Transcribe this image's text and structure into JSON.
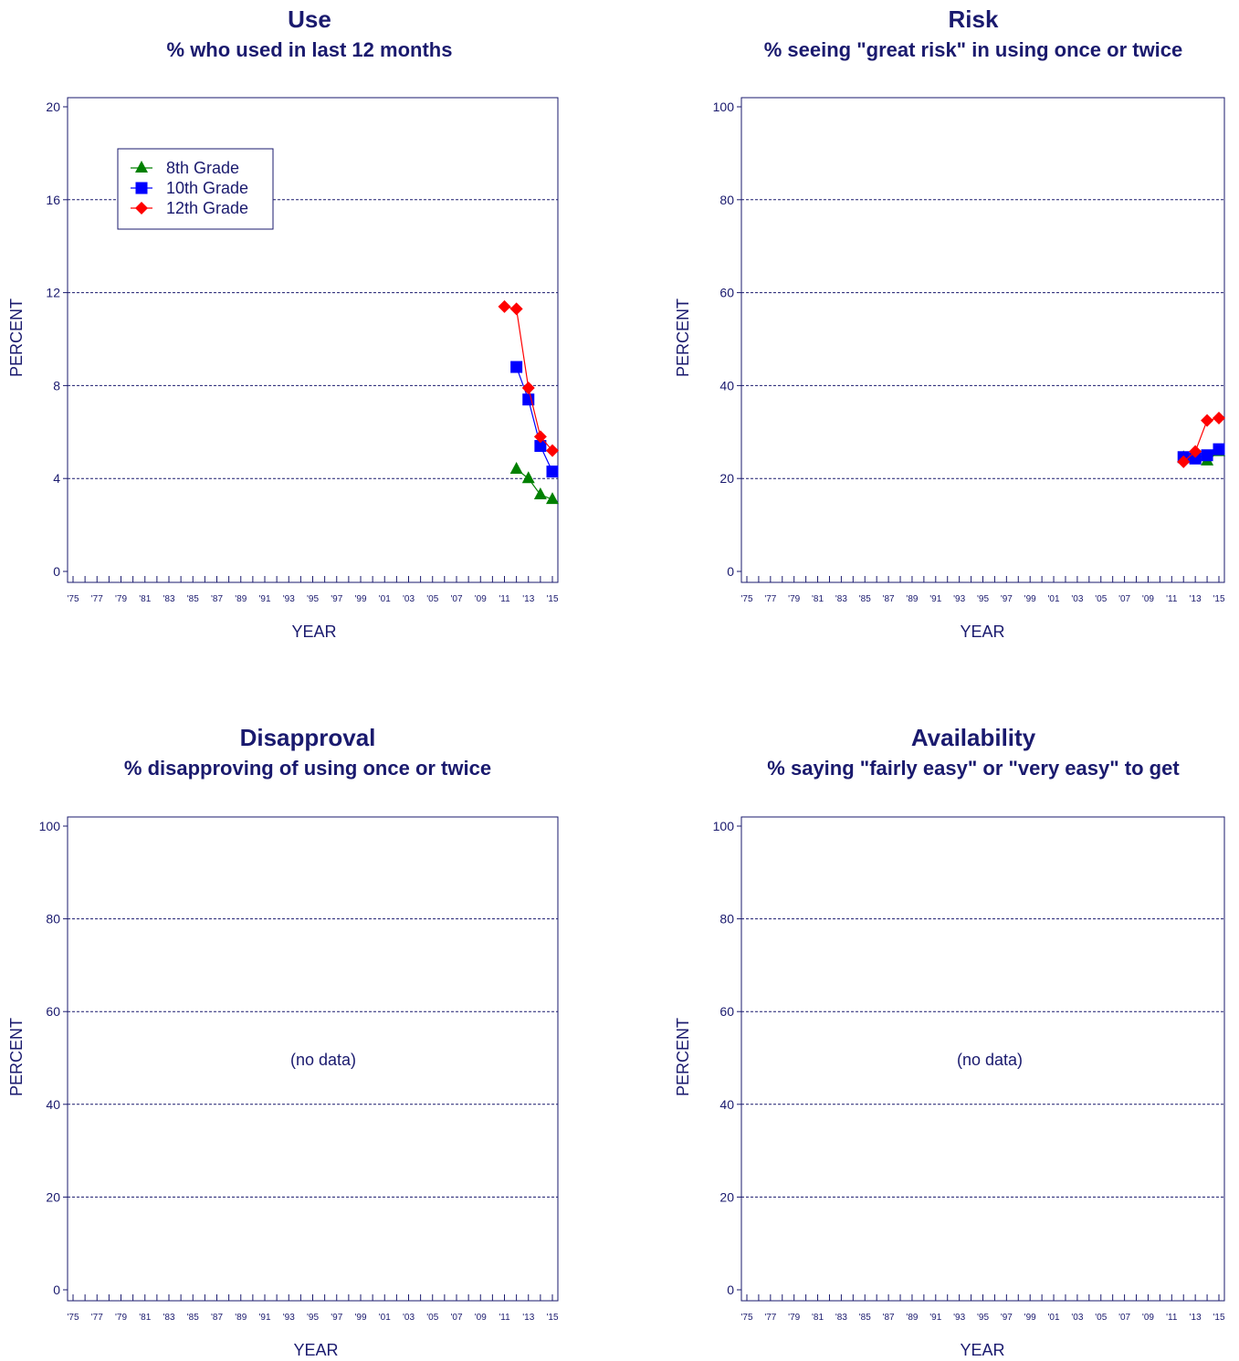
{
  "colors": {
    "axis": "#1a1a6e",
    "grid": "#1a1a6e",
    "grade8": "#008000",
    "grade10": "#0000ff",
    "grade12": "#ff0000"
  },
  "legend": {
    "entries": [
      {
        "label": "8th Grade",
        "marker": "triangle",
        "color": "#008000"
      },
      {
        "label": "10th Grade",
        "marker": "square",
        "color": "#0000ff"
      },
      {
        "label": "12th Grade",
        "marker": "diamond",
        "color": "#ff0000"
      }
    ]
  },
  "chart_data": [
    {
      "type": "line",
      "title": "Use",
      "subtitle": "% who used in last 12 months",
      "xlabel": "YEAR",
      "ylabel": "PERCENT",
      "xlim": [
        1975,
        2015
      ],
      "ylim": [
        0,
        20
      ],
      "yticks": [
        0,
        4,
        8,
        12,
        16,
        20
      ],
      "xticks": [
        "'75",
        "'77",
        "'79",
        "'81",
        "'83",
        "'85",
        "'87",
        "'89",
        "'91",
        "'93",
        "'95",
        "'97",
        "'99",
        "'01",
        "'03",
        "'05",
        "'07",
        "'09",
        "'11",
        "'13",
        "'15"
      ],
      "grid": "horizontal dashed",
      "legend_position": "top-left",
      "series": [
        {
          "name": "8th Grade",
          "marker": "triangle",
          "color": "#008000",
          "x": [
            2012,
            2013,
            2014,
            2015
          ],
          "y": [
            4.4,
            4.0,
            3.3,
            3.1
          ]
        },
        {
          "name": "10th Grade",
          "marker": "square",
          "color": "#0000ff",
          "x": [
            2012,
            2013,
            2014,
            2015
          ],
          "y": [
            8.8,
            7.4,
            5.4,
            4.3
          ]
        },
        {
          "name": "12th Grade",
          "marker": "diamond",
          "color": "#ff0000",
          "x": [
            2011,
            2012,
            2013,
            2014,
            2015
          ],
          "y": [
            11.4,
            11.3,
            7.9,
            5.8,
            5.2
          ]
        }
      ]
    },
    {
      "type": "line",
      "title": "Risk",
      "subtitle": "% seeing \"great risk\" in using once or twice",
      "xlabel": "YEAR",
      "ylabel": "PERCENT",
      "xlim": [
        1975,
        2015
      ],
      "ylim": [
        0,
        100
      ],
      "yticks": [
        0,
        20,
        40,
        60,
        80,
        100
      ],
      "xticks": [
        "'75",
        "'77",
        "'79",
        "'81",
        "'83",
        "'85",
        "'87",
        "'89",
        "'91",
        "'93",
        "'95",
        "'97",
        "'99",
        "'01",
        "'03",
        "'05",
        "'07",
        "'09",
        "'11",
        "'13",
        "'15"
      ],
      "grid": "horizontal dashed",
      "series": [
        {
          "name": "8th Grade",
          "marker": "triangle",
          "color": "#008000",
          "x": [
            2012,
            2013,
            2014,
            2015
          ],
          "y": [
            24.5,
            24.5,
            23.8,
            25.8
          ]
        },
        {
          "name": "10th Grade",
          "marker": "square",
          "color": "#0000ff",
          "x": [
            2012,
            2013,
            2014,
            2015
          ],
          "y": [
            24.6,
            24.3,
            25.0,
            26.3
          ]
        },
        {
          "name": "12th Grade",
          "marker": "diamond",
          "color": "#ff0000",
          "x": [
            2012,
            2013,
            2014,
            2015
          ],
          "y": [
            23.6,
            25.8,
            32.5,
            33.0
          ]
        }
      ]
    },
    {
      "type": "line",
      "title": "Disapproval",
      "subtitle": "% disapproving of using once or twice",
      "xlabel": "YEAR",
      "ylabel": "PERCENT",
      "xlim": [
        1975,
        2015
      ],
      "ylim": [
        0,
        100
      ],
      "yticks": [
        0,
        20,
        40,
        60,
        80,
        100
      ],
      "xticks": [
        "'75",
        "'77",
        "'79",
        "'81",
        "'83",
        "'85",
        "'87",
        "'89",
        "'91",
        "'93",
        "'95",
        "'97",
        "'99",
        "'01",
        "'03",
        "'05",
        "'07",
        "'09",
        "'11",
        "'13",
        "'15"
      ],
      "grid": "horizontal dashed",
      "annotation": "(no data)",
      "series": []
    },
    {
      "type": "line",
      "title": "Availability",
      "subtitle": "% saying \"fairly easy\" or \"very easy\" to get",
      "xlabel": "YEAR",
      "ylabel": "PERCENT",
      "xlim": [
        1975,
        2015
      ],
      "ylim": [
        0,
        100
      ],
      "yticks": [
        0,
        20,
        40,
        60,
        80,
        100
      ],
      "xticks": [
        "'75",
        "'77",
        "'79",
        "'81",
        "'83",
        "'85",
        "'87",
        "'89",
        "'91",
        "'93",
        "'95",
        "'97",
        "'99",
        "'01",
        "'03",
        "'05",
        "'07",
        "'09",
        "'11",
        "'13",
        "'15"
      ],
      "grid": "horizontal dashed",
      "annotation": "(no data)",
      "series": []
    }
  ]
}
